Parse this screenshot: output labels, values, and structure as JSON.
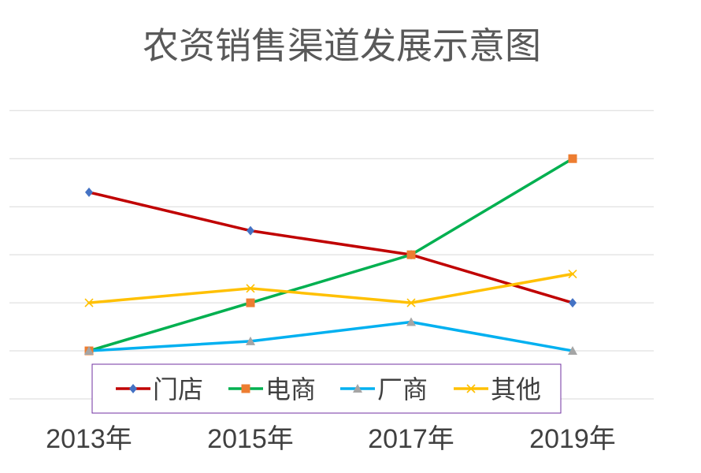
{
  "chart_data": {
    "type": "line",
    "title": "农资销售渠道发展示意图",
    "xlabel": "",
    "ylabel": "",
    "categories": [
      "2013年",
      "2015年",
      "2017年",
      "2019年"
    ],
    "ylim": [
      0,
      6.3
    ],
    "grid": true,
    "legend": "bottom",
    "series": [
      {
        "name": "门店",
        "values": [
          4.3,
          3.5,
          3.0,
          2.0
        ],
        "color": "#c00000",
        "marker": "diamond",
        "marker_color": "#4472c4"
      },
      {
        "name": "电商",
        "values": [
          1.0,
          2.0,
          3.0,
          5.0
        ],
        "color": "#00b050",
        "marker": "square",
        "marker_color": "#ed7d31"
      },
      {
        "name": "厂商",
        "values": [
          1.0,
          1.2,
          1.6,
          1.0
        ],
        "color": "#00b0f0",
        "marker": "triangle",
        "marker_color": "#a5a5a5"
      },
      {
        "name": "其他",
        "values": [
          2.0,
          2.3,
          2.0,
          2.6
        ],
        "color": "#ffc000",
        "marker": "x",
        "marker_color": "#ffc000"
      }
    ],
    "legend_border_color": "#7030a0",
    "grid_color": "#d9d9d9"
  }
}
